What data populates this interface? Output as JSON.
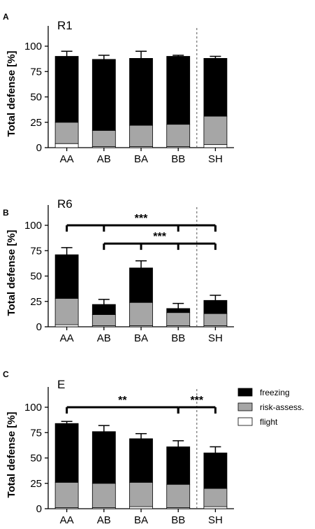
{
  "chart_data": [
    {
      "type": "bar",
      "stacked": true,
      "panel_letter": "A",
      "title": "R1",
      "ylabel": "Total defense [%]",
      "ylim": [
        0,
        120
      ],
      "yticks": [
        0,
        25,
        50,
        75,
        100
      ],
      "categories": [
        "AA",
        "AB",
        "BA",
        "BB",
        "SH"
      ],
      "separator_before": "SH",
      "series": [
        {
          "name": "flight",
          "color": "#ffffff",
          "values": [
            4,
            1,
            1,
            1,
            3
          ]
        },
        {
          "name": "risk-assess.",
          "color": "#a6a6a6",
          "values": [
            21,
            16,
            21,
            22,
            28
          ]
        },
        {
          "name": "freezing",
          "color": "#000000",
          "values": [
            65,
            70,
            66,
            67,
            57
          ]
        }
      ],
      "error_top": [
        95,
        91,
        95,
        91,
        90
      ],
      "significance": []
    },
    {
      "type": "bar",
      "stacked": true,
      "panel_letter": "B",
      "title": "R6",
      "ylabel": "Total defense [%]",
      "ylim": [
        0,
        120
      ],
      "yticks": [
        0,
        25,
        50,
        75,
        100
      ],
      "categories": [
        "AA",
        "AB",
        "BA",
        "BB",
        "SH"
      ],
      "separator_before": "SH",
      "series": [
        {
          "name": "flight",
          "color": "#ffffff",
          "values": [
            2,
            1,
            1,
            1,
            1
          ]
        },
        {
          "name": "risk-assess.",
          "color": "#a6a6a6",
          "values": [
            26,
            11,
            23,
            13,
            12
          ]
        },
        {
          "name": "freezing",
          "color": "#000000",
          "values": [
            43,
            10,
            34,
            4,
            13
          ]
        }
      ],
      "error_top": [
        78,
        27,
        65,
        23,
        31
      ],
      "significance": [
        {
          "from": "AA",
          "ticks": [
            "AB",
            "BB",
            "SH"
          ],
          "to": "SH",
          "level": 100,
          "label": "***"
        },
        {
          "from": "AB",
          "ticks": [
            "BA",
            "BB"
          ],
          "to": "SH",
          "level": 82,
          "label": "***"
        }
      ]
    },
    {
      "type": "bar",
      "stacked": true,
      "panel_letter": "C",
      "title": "E",
      "ylabel": "Total defense [%]",
      "ylim": [
        0,
        120
      ],
      "yticks": [
        0,
        25,
        50,
        75,
        100
      ],
      "categories": [
        "AA",
        "AB",
        "BA",
        "BB",
        "SH"
      ],
      "separator_before": "SH",
      "series": [
        {
          "name": "flight",
          "color": "#ffffff",
          "values": [
            1,
            1,
            2,
            1,
            2
          ]
        },
        {
          "name": "risk-assess.",
          "color": "#a6a6a6",
          "values": [
            25,
            24,
            24,
            23,
            18
          ]
        },
        {
          "name": "freezing",
          "color": "#000000",
          "values": [
            58,
            51,
            43,
            37,
            35
          ]
        }
      ],
      "error_top": [
        86,
        82,
        74,
        67,
        61
      ],
      "significance": [
        {
          "from": "AA",
          "ticks": [],
          "to": "BB",
          "level": 100,
          "label": "**"
        },
        {
          "from": "BB",
          "ticks": [],
          "to": "SH",
          "level": 100,
          "label": "***"
        }
      ],
      "legend": {
        "placement": "right",
        "entries": [
          {
            "label": "freezing",
            "color": "#000000"
          },
          {
            "label": "risk-assess.",
            "color": "#a6a6a6"
          },
          {
            "label": "flight",
            "color": "#ffffff"
          }
        ]
      }
    }
  ]
}
